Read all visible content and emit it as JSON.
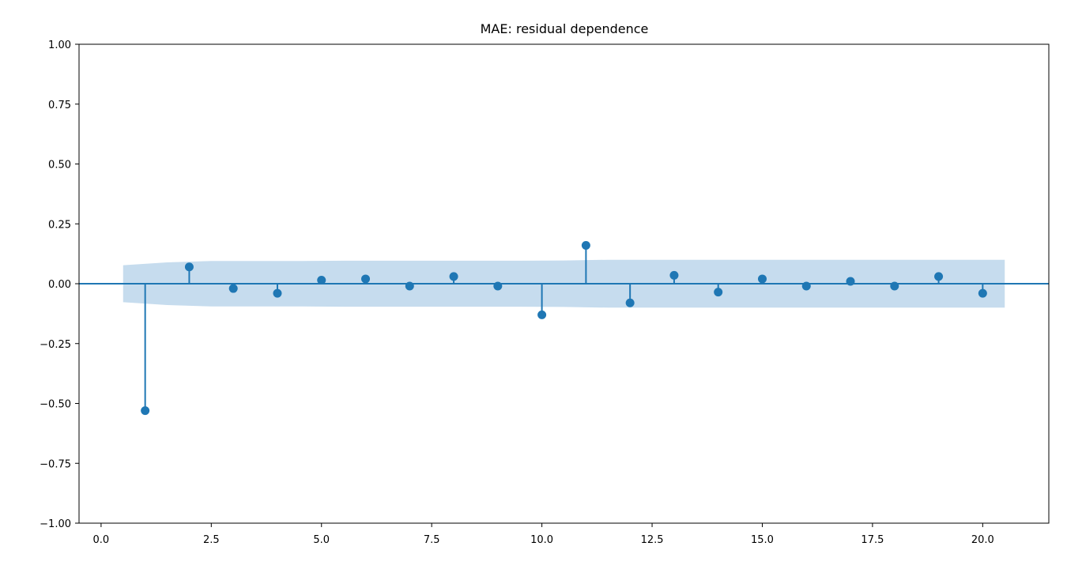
{
  "chart_data": {
    "type": "stem",
    "title": "MAE: residual dependence",
    "xlabel": "",
    "ylabel": "",
    "xlim": [
      -0.5,
      21.5
    ],
    "ylim": [
      -1.0,
      1.0
    ],
    "x_ticks": [
      0.0,
      2.5,
      5.0,
      7.5,
      10.0,
      12.5,
      15.0,
      17.5,
      20.0
    ],
    "x_tick_labels": [
      "0.0",
      "2.5",
      "5.0",
      "7.5",
      "10.0",
      "12.5",
      "15.0",
      "17.5",
      "20.0"
    ],
    "y_ticks": [
      1.0,
      0.75,
      0.5,
      0.25,
      0.0,
      -0.25,
      -0.5,
      -0.75,
      -1.0
    ],
    "y_tick_labels": [
      "1.00",
      "0.75",
      "0.50",
      "0.25",
      "0.00",
      "−0.25",
      "−0.50",
      "−0.75",
      "−1.00"
    ],
    "grid": false,
    "colors": {
      "stem": "#1f77b4",
      "band": "#c6dcee"
    },
    "lags": [
      1,
      2,
      3,
      4,
      5,
      6,
      7,
      8,
      9,
      10,
      11,
      12,
      13,
      14,
      15,
      16,
      17,
      18,
      19,
      20
    ],
    "values": [
      -0.53,
      0.07,
      -0.02,
      -0.04,
      0.015,
      0.02,
      -0.01,
      0.03,
      -0.01,
      -0.13,
      0.16,
      -0.08,
      0.035,
      -0.035,
      0.02,
      -0.01,
      0.01,
      -0.01,
      0.03,
      -0.04
    ],
    "confidence_band": {
      "x": [
        0.5,
        1.5,
        2.5,
        3.5,
        4.5,
        5.5,
        6.5,
        7.5,
        8.5,
        9.5,
        10.5,
        11.5,
        12.5,
        13.5,
        14.5,
        15.5,
        16.5,
        17.5,
        18.5,
        19.5,
        20.5
      ],
      "upper": [
        0.077,
        0.089,
        0.095,
        0.095,
        0.095,
        0.096,
        0.096,
        0.096,
        0.096,
        0.096,
        0.097,
        0.1,
        0.1,
        0.1,
        0.1,
        0.1,
        0.1,
        0.1,
        0.1,
        0.1,
        0.1
      ]
    }
  }
}
